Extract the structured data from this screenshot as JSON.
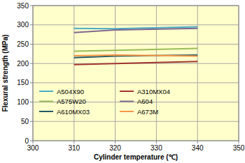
{
  "chart_data": {
    "type": "line",
    "xlabel": "Cylinder temperature (℃)",
    "ylabel": "Flexural strength (MPa)",
    "x": [
      310,
      320,
      340
    ],
    "series": [
      {
        "name": "A504X90",
        "color": "#4bacc6",
        "values": [
          291,
          290,
          295
        ]
      },
      {
        "name": "A310MX04",
        "color": "#a0352f",
        "values": [
          197,
          200,
          205
        ]
      },
      {
        "name": "A575W20",
        "color": "#9bbb59",
        "values": [
          232,
          234,
          239
        ]
      },
      {
        "name": "A604",
        "color": "#7f6a8f",
        "values": [
          280,
          287,
          291
        ]
      },
      {
        "name": "A610MX03",
        "color": "#215968",
        "values": [
          215,
          219,
          222
        ]
      },
      {
        "name": "A673M",
        "color": "#f79646",
        "values": [
          220,
          222,
          219
        ]
      }
    ],
    "xlim": [
      300,
      350
    ],
    "xticks": [
      300,
      310,
      320,
      330,
      340,
      350
    ],
    "ylim": [
      0,
      350
    ],
    "yticks": [
      0,
      50,
      100,
      150,
      200,
      250,
      300,
      350
    ],
    "grid": true,
    "legend": "lower left"
  }
}
